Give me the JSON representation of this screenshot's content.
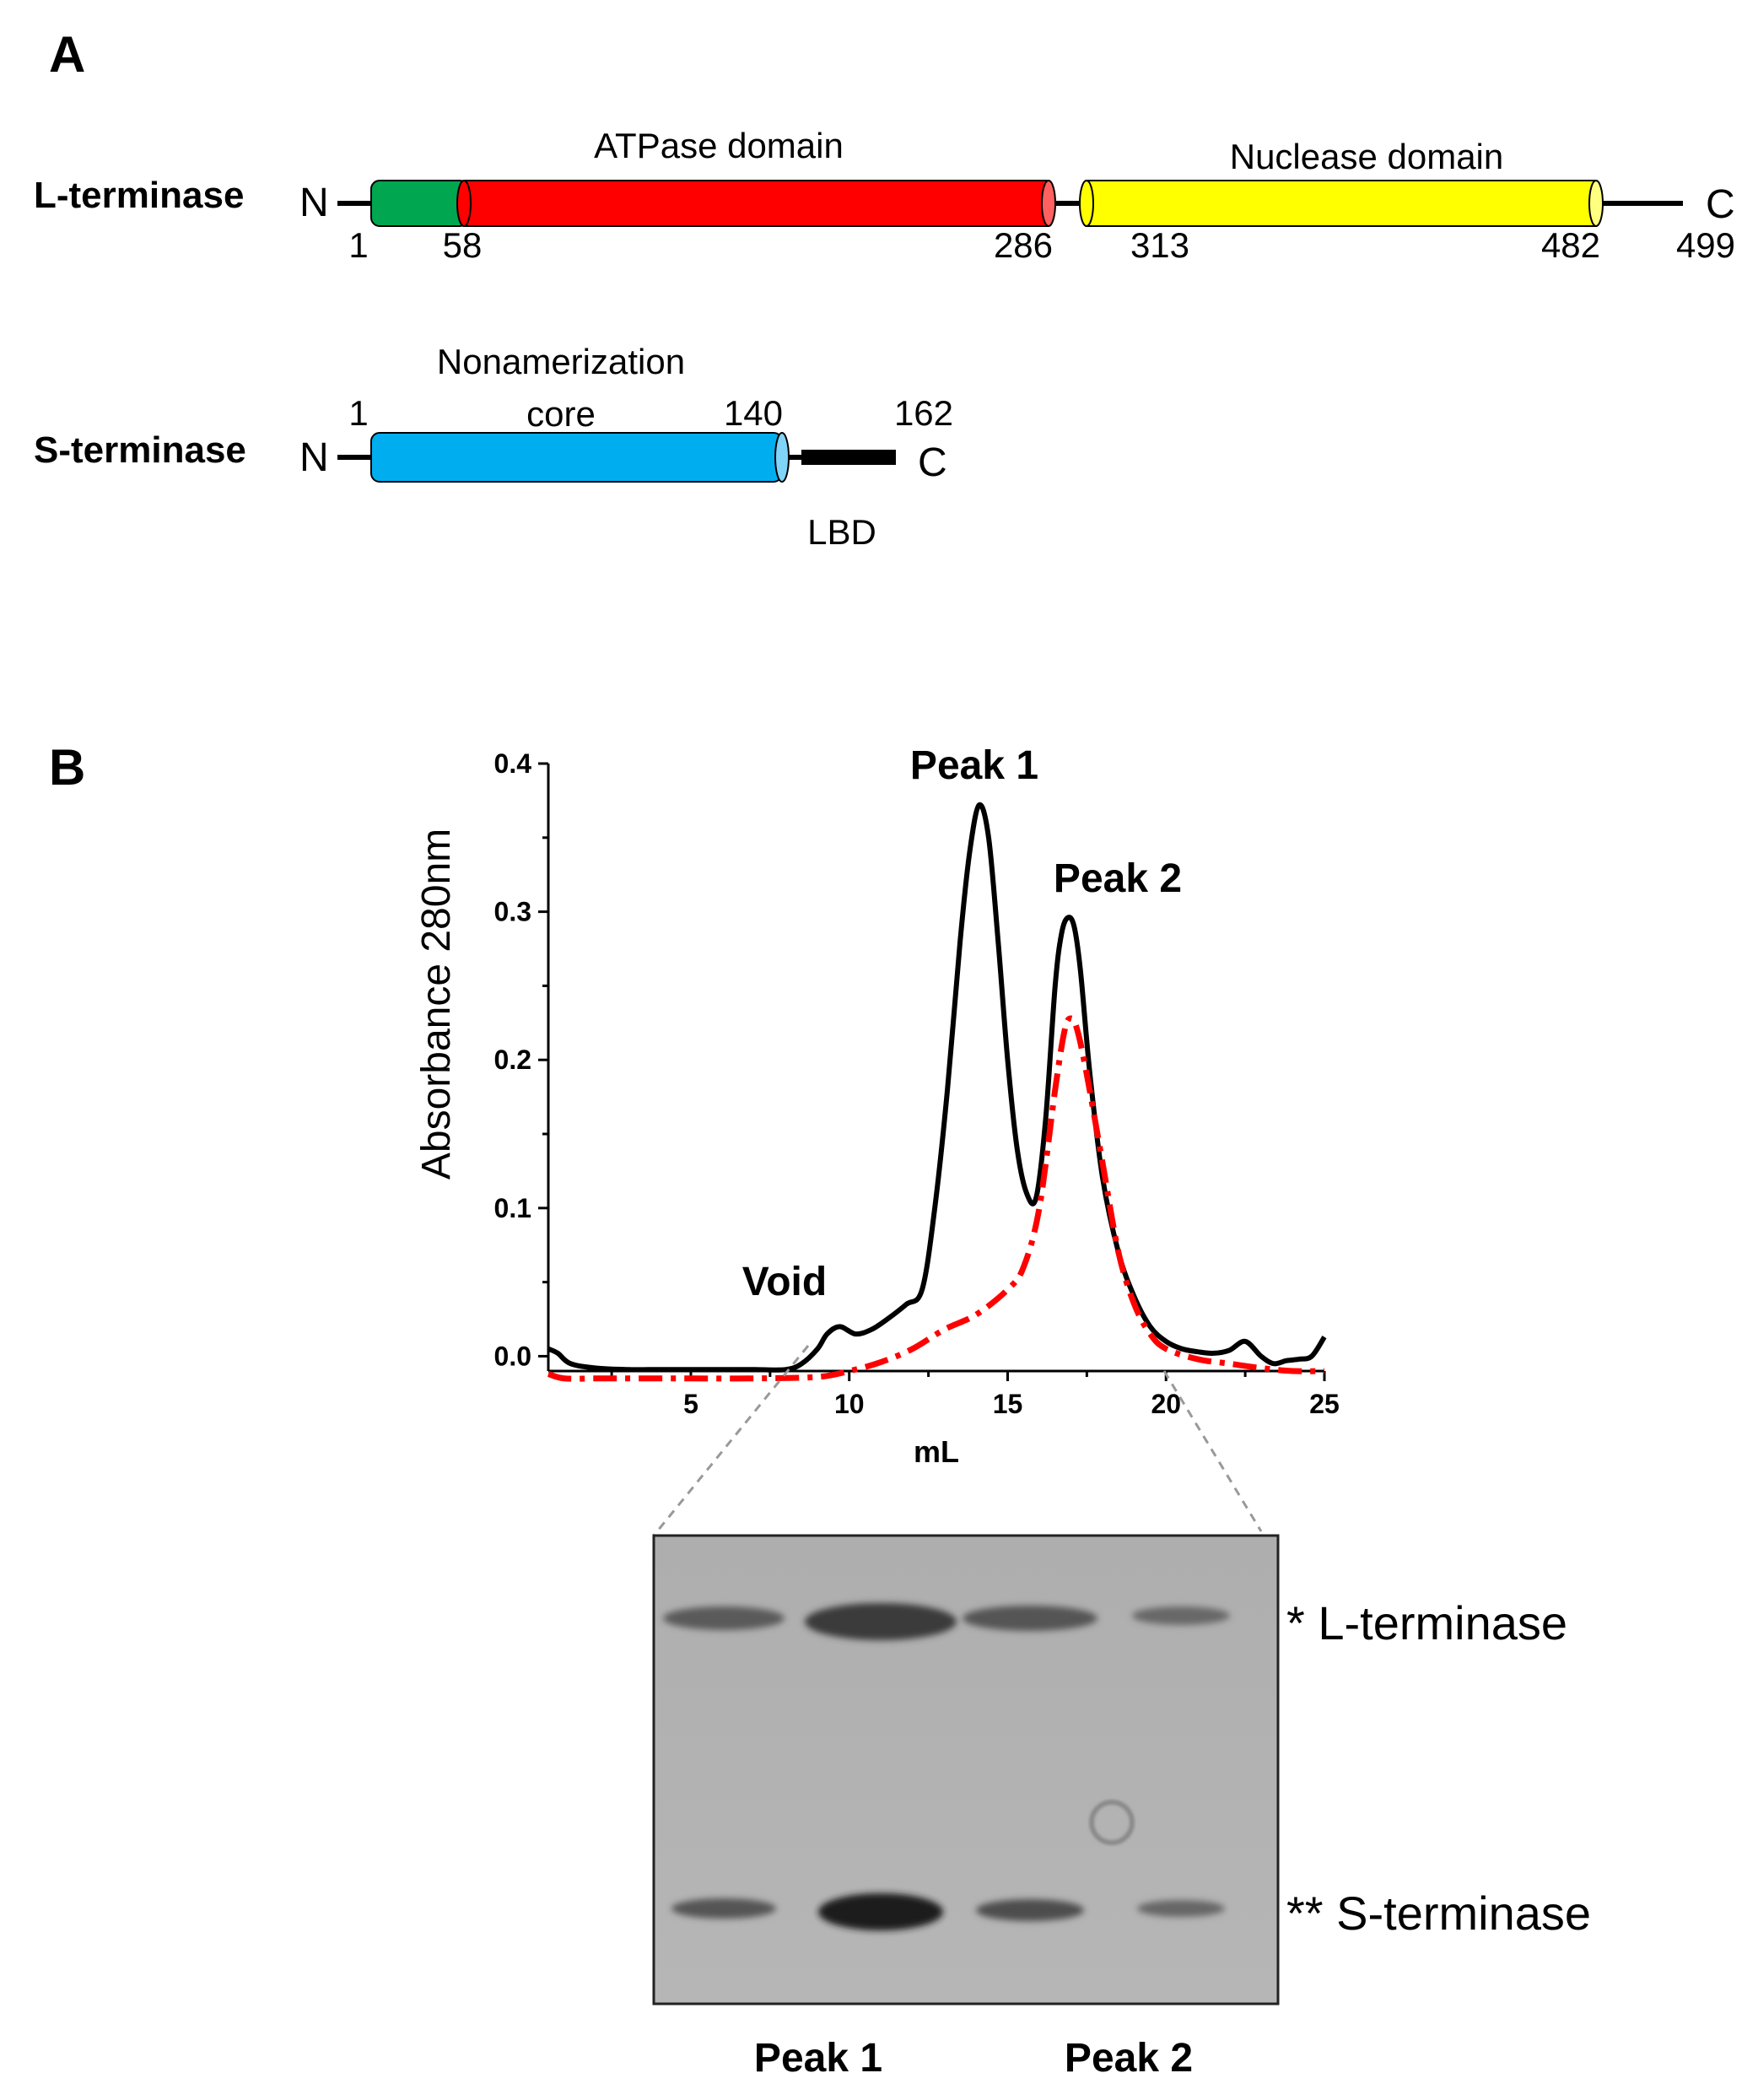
{
  "panel_a": {
    "label": "A",
    "l_terminase": {
      "name": "L-terminase",
      "n_label": "N",
      "c_label": "C",
      "domains": [
        {
          "name": "",
          "start": 1,
          "end": 58,
          "color": "#00a650"
        },
        {
          "name": "ATPase domain",
          "start": 58,
          "end": 286,
          "color": "#ff0000"
        },
        {
          "name": "Nuclease domain",
          "start": 313,
          "end": 482,
          "color": "#ffff00"
        }
      ],
      "positions": [
        "1",
        "58",
        "286",
        "313",
        "482",
        "499"
      ]
    },
    "s_terminase": {
      "name": "S-terminase",
      "n_label": "N",
      "c_label": "C",
      "domain_label_line1": "Nonamerization",
      "domain_label_line2": "core",
      "domain_color": "#00aeef",
      "tail_label": "LBD",
      "positions": [
        "1",
        "140",
        "162"
      ]
    }
  },
  "panel_b": {
    "label": "B",
    "annotations": {
      "peak1": "Peak 1",
      "peak2": "Peak 2",
      "void": "Void"
    },
    "gel": {
      "band_labels": [
        "* L-terminase",
        "** S-terminase"
      ],
      "lane_labels": [
        "Peak 1",
        "Peak 2"
      ]
    }
  },
  "chart_data": {
    "type": "line",
    "title": "",
    "xlabel": "mL",
    "ylabel": "Absorbance 280nm",
    "xlim": [
      0.5,
      25
    ],
    "ylim": [
      -0.01,
      0.4
    ],
    "xticks": [
      5,
      10,
      15,
      20,
      25
    ],
    "yticks": [
      0.0,
      0.1,
      0.2,
      0.3,
      0.4
    ],
    "ytick_labels": [
      "0.0",
      "0.1",
      "0.2",
      "0.3",
      "0.4"
    ],
    "grid": false,
    "series": [
      {
        "color": "#000000",
        "style": "solid",
        "x": [
          0.5,
          0.8,
          1.2,
          2,
          3,
          4,
          5,
          6,
          7,
          8,
          8.5,
          9,
          9.3,
          9.7,
          10.2,
          10.7,
          11.2,
          11.8,
          12.3,
          12.7,
          13.1,
          13.5,
          13.8,
          14.1,
          14.4,
          14.7,
          15.0,
          15.3,
          15.6,
          15.9,
          16.2,
          16.5,
          16.7,
          16.9,
          17.1,
          17.3,
          17.6,
          18.0,
          18.5,
          19.0,
          19.5,
          20.0,
          20.5,
          21.0,
          21.5,
          22.0,
          22.5,
          23.0,
          23.4,
          23.8,
          24.2,
          24.6,
          25.0
        ],
        "y": [
          0.005,
          0.002,
          -0.005,
          -0.008,
          -0.009,
          -0.009,
          -0.009,
          -0.009,
          -0.009,
          -0.009,
          -0.005,
          0.005,
          0.015,
          0.02,
          0.015,
          0.018,
          0.025,
          0.035,
          0.045,
          0.1,
          0.18,
          0.28,
          0.34,
          0.372,
          0.35,
          0.28,
          0.2,
          0.14,
          0.11,
          0.107,
          0.16,
          0.25,
          0.285,
          0.296,
          0.29,
          0.26,
          0.19,
          0.12,
          0.07,
          0.04,
          0.02,
          0.01,
          0.005,
          0.003,
          0.002,
          0.004,
          0.01,
          0.0,
          -0.005,
          -0.003,
          -0.002,
          0.0,
          0.013
        ]
      },
      {
        "color": "#ff0000",
        "style": "dash-dot",
        "x": [
          0.5,
          1,
          2,
          3,
          5,
          7,
          9,
          10,
          11,
          12,
          13,
          14,
          15,
          15.5,
          16,
          16.5,
          16.8,
          17.0,
          17.2,
          17.5,
          18.0,
          18.5,
          19.0,
          19.5,
          20.0,
          21.0,
          22.0,
          23.0,
          24.0,
          25.0
        ],
        "y": [
          -0.012,
          -0.015,
          -0.015,
          -0.015,
          -0.015,
          -0.015,
          -0.014,
          -0.01,
          -0.004,
          0.005,
          0.018,
          0.028,
          0.045,
          0.06,
          0.1,
          0.18,
          0.22,
          0.228,
          0.22,
          0.19,
          0.13,
          0.07,
          0.035,
          0.015,
          0.005,
          -0.002,
          -0.005,
          -0.008,
          -0.01,
          -0.01
        ]
      }
    ]
  }
}
